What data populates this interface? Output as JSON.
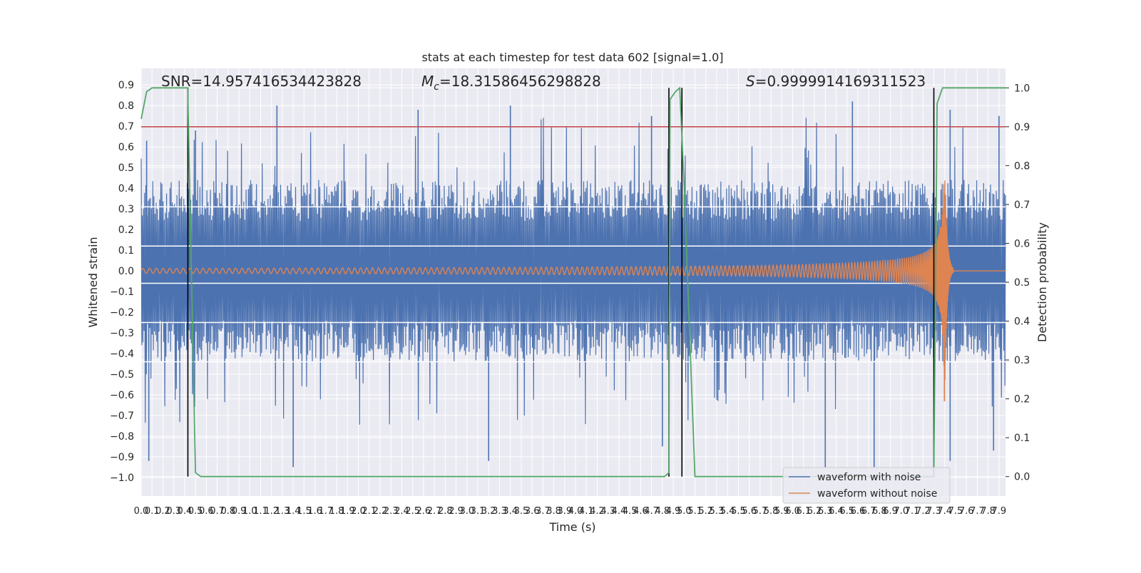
{
  "chart_data": {
    "type": "line",
    "title": "stats at each timestep for test data 602 [signal=1.0]",
    "xlabel": "Time (s)",
    "ylabel_left": "Whitened strain",
    "ylabel_right": "Detection probability",
    "xlim": [
      0.0,
      7.96
    ],
    "ylim_left": [
      -1.09,
      0.98
    ],
    "ylim_right": [
      -0.05,
      1.05
    ],
    "grid": true,
    "legend_placement": "lower right",
    "x_ticks": [
      "0.0",
      "0.1",
      "0.2",
      "0.3",
      "0.4",
      "0.5",
      "0.6",
      "0.7",
      "0.8",
      "0.9",
      "1.0",
      "1.1",
      "1.2",
      "1.3",
      "1.4",
      "1.5",
      "1.6",
      "1.7",
      "1.8",
      "1.9",
      "2.0",
      "2.1",
      "2.2",
      "2.3",
      "2.4",
      "2.5",
      "2.6",
      "2.7",
      "2.8",
      "2.9",
      "3.0",
      "3.1",
      "3.2",
      "3.3",
      "3.4",
      "3.5",
      "3.6",
      "3.7",
      "3.8",
      "3.9",
      "4.0",
      "4.1",
      "4.2",
      "4.3",
      "4.4",
      "4.5",
      "4.6",
      "4.7",
      "4.8",
      "4.9",
      "5.0",
      "5.1",
      "5.2",
      "5.3",
      "5.4",
      "5.5",
      "5.6",
      "5.7",
      "5.8",
      "5.9",
      "6.0",
      "6.1",
      "6.2",
      "6.3",
      "6.4",
      "6.5",
      "6.6",
      "6.7",
      "6.8",
      "6.9",
      "7.0",
      "7.1",
      "7.2",
      "7.3",
      "7.4",
      "7.5",
      "7.6",
      "7.7",
      "7.8",
      "7.9"
    ],
    "y_ticks_left": [
      "0.9",
      "0.8",
      "0.7",
      "0.6",
      "0.5",
      "0.4",
      "0.3",
      "0.2",
      "0.1",
      "0.0",
      "−0.1",
      "−0.2",
      "−0.3",
      "−0.4",
      "−0.5",
      "−0.6",
      "−0.7",
      "−0.8",
      "−0.9",
      "−1.0"
    ],
    "y_ticks_right": [
      "1.0",
      "0.9",
      "0.8",
      "0.7",
      "0.6",
      "0.5",
      "0.4",
      "0.3",
      "0.2",
      "0.1",
      "0.0"
    ],
    "annotations": {
      "snr": "SNR=14.957416534423828",
      "mc": "=18.31586456298828",
      "mc_symbol": "M",
      "mc_sub": "c",
      "s": "=0.9999914169311523",
      "s_symbol": "S"
    },
    "threshold": {
      "value": 0.9,
      "axis": "right",
      "color": "#c44e52"
    },
    "white_hlines_left": [
      0.31,
      0.12,
      -0.06,
      -0.25,
      -0.44
    ],
    "vlines_x": [
      0.43,
      4.86,
      4.98,
      7.3
    ],
    "vline_color": "#000000",
    "series": [
      {
        "name": "waveform with noise",
        "color": "#4c72b0",
        "axis": "left",
        "description_values": {
          "x_range": [
            0.0,
            7.96
          ],
          "typical_band": [
            -0.44,
            0.44
          ],
          "peaks_top": [
            [
              0.05,
              0.63
            ],
            [
              0.5,
              0.68
            ],
            [
              1.25,
              0.8
            ],
            [
              2.55,
              0.78
            ],
            [
              3.4,
              0.8
            ],
            [
              4.7,
              0.75
            ],
            [
              6.55,
              0.82
            ],
            [
              7.45,
              0.78
            ],
            [
              7.9,
              0.75
            ]
          ],
          "peaks_bottom": [
            [
              0.07,
              -0.92
            ],
            [
              1.4,
              -0.95
            ],
            [
              3.2,
              -0.92
            ],
            [
              4.8,
              -0.85
            ],
            [
              6.3,
              -0.95
            ],
            [
              6.75,
              -0.95
            ],
            [
              7.45,
              -0.92
            ],
            [
              7.85,
              -0.87
            ]
          ]
        }
      },
      {
        "name": "waveform without noise",
        "color": "#dd8452",
        "axis": "left",
        "chirp": {
          "t_start": 0.0,
          "t_merger": 7.4,
          "f_start": 20,
          "f_end": 250,
          "amp_start": 0.012,
          "amp_peak": 0.64,
          "ringdown_end": 7.48
        }
      },
      {
        "name": "detection probability",
        "color": "#55a868",
        "axis": "right",
        "points": [
          [
            0.0,
            0.92
          ],
          [
            0.05,
            0.99
          ],
          [
            0.1,
            1.0
          ],
          [
            0.43,
            1.0
          ],
          [
            0.43,
            0.97
          ],
          [
            0.5,
            0.01
          ],
          [
            0.55,
            0.0
          ],
          [
            4.82,
            0.0
          ],
          [
            4.86,
            0.01
          ],
          [
            4.87,
            0.97
          ],
          [
            4.92,
            0.99
          ],
          [
            4.96,
            1.0
          ],
          [
            5.0,
            0.75
          ],
          [
            5.1,
            0.0
          ],
          [
            7.3,
            0.0
          ],
          [
            7.33,
            0.96
          ],
          [
            7.38,
            1.0
          ],
          [
            7.96,
            1.0
          ]
        ]
      }
    ]
  }
}
